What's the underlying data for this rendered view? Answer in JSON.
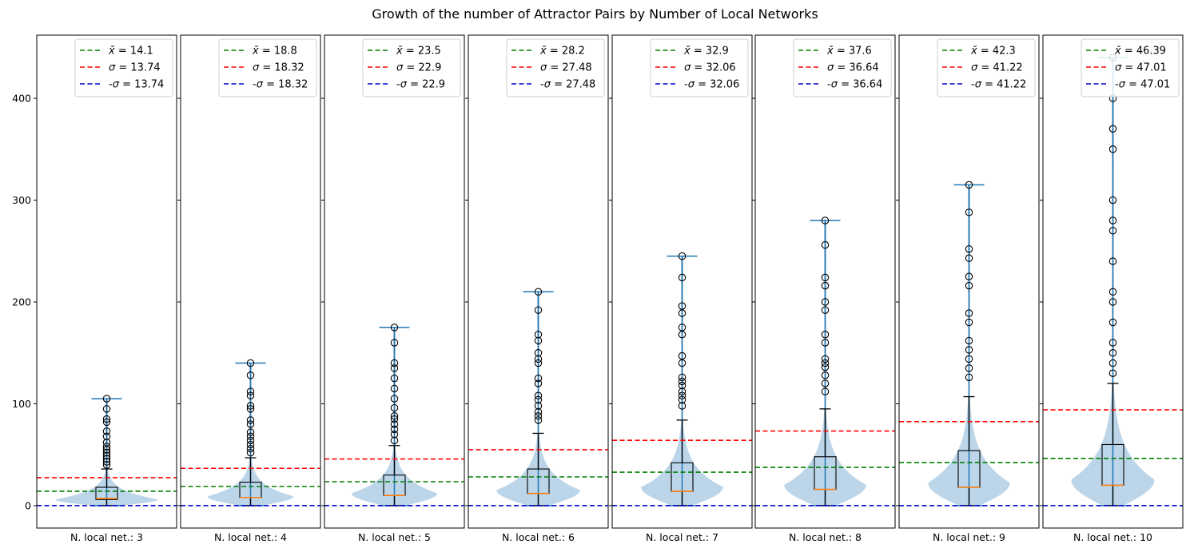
{
  "chart_data": {
    "type": "violin+box",
    "title": "Growth of the number of Attractor Pairs by Number of Local Networks",
    "ylim": [
      -22,
      462
    ],
    "yticks": [
      0,
      100,
      200,
      300,
      400
    ],
    "legend_position": "top-right",
    "colors": {
      "mean": "#008000",
      "sigma": "#ff0000",
      "neg_sigma": "#0000cc",
      "violin": "#b8d3e8",
      "whisker": "#1f77b4",
      "median": "#ff7f0e"
    },
    "panels": [
      {
        "xlabel": "N. local net.: 3",
        "mean": 14.1,
        "sigma": 13.74,
        "legend": [
          "$\\bar{x} = 14.1$",
          "$\\sigma = 13.74$",
          "-$\\sigma = 13.74$"
        ],
        "q1": 6,
        "median": 7,
        "q3": 18,
        "whisker_low": 0,
        "whisker_high": 36,
        "min": 0,
        "max": 105,
        "violin_peak": 6,
        "violin_halfwidth": 0.62,
        "outliers": [
          40,
          43,
          46,
          49,
          52,
          55,
          58,
          62,
          68,
          73,
          82,
          85,
          95,
          105
        ]
      },
      {
        "xlabel": "N. local net.: 4",
        "mean": 18.8,
        "sigma": 18.32,
        "legend": [
          "$\\bar{x} = 18.8$",
          "$\\sigma = 18.32$",
          "-$\\sigma = 18.32$"
        ],
        "q1": 8,
        "median": 8,
        "q3": 23,
        "whisker_low": 0,
        "whisker_high": 47,
        "min": 0,
        "max": 140,
        "violin_peak": 9,
        "violin_halfwidth": 0.5,
        "outliers": [
          52,
          56,
          60,
          64,
          68,
          72,
          80,
          84,
          95,
          98,
          108,
          112,
          128,
          140
        ]
      },
      {
        "xlabel": "N. local net.: 5",
        "mean": 23.5,
        "sigma": 22.9,
        "legend": [
          "$\\bar{x} = 23.5$",
          "$\\sigma = 22.9$",
          "-$\\sigma = 22.9$"
        ],
        "q1": 10,
        "median": 10,
        "q3": 30,
        "whisker_low": 0,
        "whisker_high": 59,
        "min": 0,
        "max": 175,
        "violin_peak": 12,
        "violin_halfwidth": 0.5,
        "outliers": [
          64,
          70,
          75,
          80,
          85,
          88,
          96,
          105,
          115,
          125,
          135,
          140,
          160,
          175
        ]
      },
      {
        "xlabel": "N. local net.: 6",
        "mean": 28.2,
        "sigma": 27.48,
        "legend": [
          "$\\bar{x} = 28.2$",
          "$\\sigma = 27.48$",
          "-$\\sigma = 27.48$"
        ],
        "q1": 12,
        "median": 12,
        "q3": 36,
        "whisker_low": 0,
        "whisker_high": 71,
        "min": 0,
        "max": 210,
        "violin_peak": 15,
        "violin_halfwidth": 0.48,
        "outliers": [
          84,
          88,
          92,
          98,
          104,
          108,
          120,
          125,
          140,
          144,
          150,
          162,
          168,
          192,
          210
        ]
      },
      {
        "xlabel": "N. local net.: 7",
        "mean": 32.9,
        "sigma": 32.06,
        "legend": [
          "$\\bar{x} = 32.9$",
          "$\\sigma = 32.06$",
          "-$\\sigma = 32.06$"
        ],
        "q1": 14,
        "median": 14,
        "q3": 42,
        "whisker_low": 0,
        "whisker_high": 84,
        "min": 0,
        "max": 245,
        "violin_peak": 18,
        "violin_halfwidth": 0.47,
        "outliers": [
          98,
          104,
          108,
          112,
          118,
          122,
          126,
          140,
          147,
          168,
          175,
          189,
          196,
          224,
          245
        ]
      },
      {
        "xlabel": "N. local net.: 8",
        "mean": 37.6,
        "sigma": 36.64,
        "legend": [
          "$\\bar{x} = 37.6$",
          "$\\sigma = 36.64$",
          "-$\\sigma = 36.64$"
        ],
        "q1": 16,
        "median": 16,
        "q3": 48,
        "whisker_low": 0,
        "whisker_high": 95,
        "min": 0,
        "max": 280,
        "violin_peak": 20,
        "violin_halfwidth": 0.47,
        "outliers": [
          112,
          120,
          128,
          136,
          140,
          144,
          160,
          168,
          192,
          200,
          216,
          224,
          256,
          280
        ]
      },
      {
        "xlabel": "N. local net.: 9",
        "mean": 42.3,
        "sigma": 41.22,
        "legend": [
          "$\\bar{x} = 42.3$",
          "$\\sigma = 41.22$",
          "-$\\sigma = 41.22$"
        ],
        "q1": 18,
        "median": 18,
        "q3": 54,
        "whisker_low": 0,
        "whisker_high": 107,
        "min": 0,
        "max": 315,
        "violin_peak": 22,
        "violin_halfwidth": 0.47,
        "outliers": [
          126,
          135,
          144,
          153,
          162,
          180,
          189,
          216,
          225,
          243,
          252,
          288,
          315
        ]
      },
      {
        "xlabel": "N. local net.: 10",
        "mean": 46.39,
        "sigma": 47.01,
        "legend": [
          "$\\bar{x} = 46.39$",
          "$\\sigma = 47.01$",
          "-$\\sigma = 47.01$"
        ],
        "q1": 20,
        "median": 20,
        "q3": 60,
        "whisker_low": 0,
        "whisker_high": 120,
        "min": 0,
        "max": 440,
        "violin_peak": 25,
        "violin_halfwidth": 0.48,
        "outliers": [
          130,
          140,
          150,
          160,
          180,
          200,
          210,
          240,
          270,
          280,
          300,
          350,
          370,
          400,
          440
        ]
      }
    ]
  }
}
